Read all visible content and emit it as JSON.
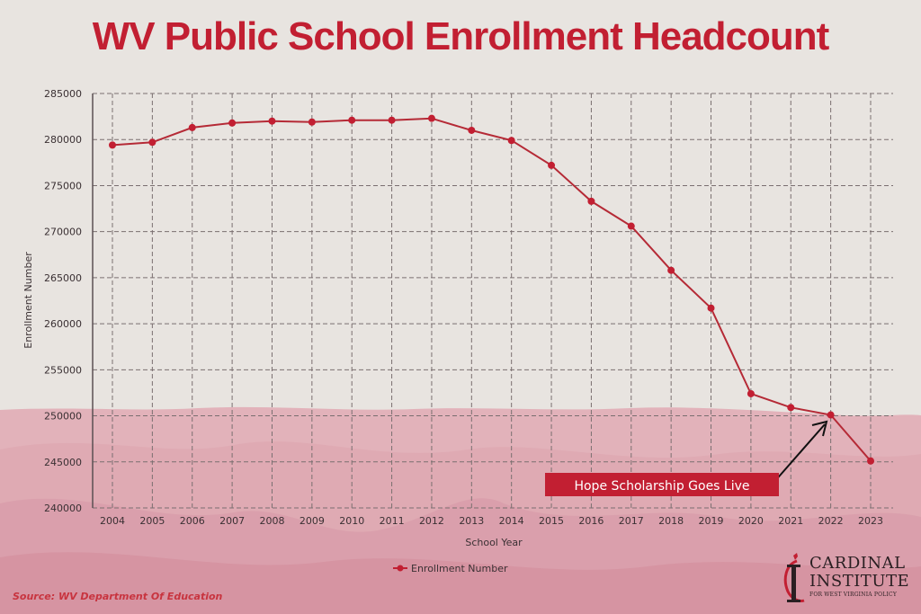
{
  "title": "WV Public School Enrollment Headcount",
  "source": "Source: WV Department Of Education",
  "logo": {
    "line1": "CARDINAL",
    "line2": "INSTITUTE",
    "line3": "FOR WEST VIRGINIA POLICY"
  },
  "colors": {
    "accent": "#c21f32",
    "line": "#b52a36",
    "background": "#e8e4e0",
    "mountain": "#d99aa6",
    "grid": "#7a6f70"
  },
  "chart_data": {
    "type": "line",
    "title": "WV Public School Enrollment Headcount",
    "xlabel": "School Year",
    "ylabel": "Enrollment Number",
    "x": [
      "2004",
      "2005",
      "2006",
      "2007",
      "2008",
      "2009",
      "2010",
      "2011",
      "2012",
      "2013",
      "2014",
      "2015",
      "2016",
      "2017",
      "2018",
      "2019",
      "2020",
      "2021",
      "2022",
      "2023"
    ],
    "series": [
      {
        "name": "Enrollment Number",
        "values": [
          279400,
          279700,
          281300,
          281800,
          282000,
          281900,
          282100,
          282100,
          282300,
          281000,
          279900,
          277200,
          273300,
          270600,
          265800,
          261700,
          252400,
          250900,
          250100,
          245100
        ]
      }
    ],
    "ylim": [
      240000,
      285000
    ],
    "yticks": [
      "240000",
      "245000",
      "250000",
      "255000",
      "260000",
      "265000",
      "270000",
      "275000",
      "280000",
      "285000"
    ],
    "grid": true,
    "legend": "bottom-center",
    "annotation": {
      "text": "Hope Scholarship Goes Live",
      "target_x": "2022"
    }
  }
}
